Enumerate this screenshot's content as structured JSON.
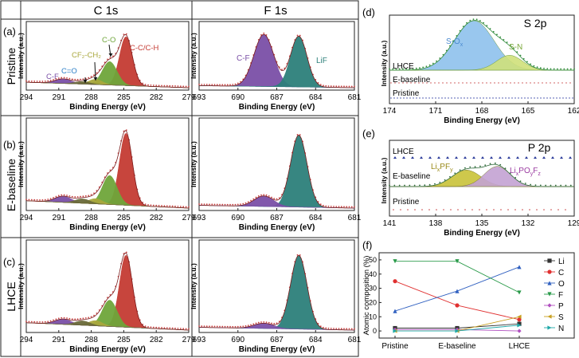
{
  "figure": {
    "columns": [
      "C 1s",
      "F 1s"
    ],
    "rows": [
      {
        "letter": "(a)",
        "name": "Pristine"
      },
      {
        "letter": "(b)",
        "name": "E-baseline"
      },
      {
        "letter": "(c)",
        "name": "LHCE"
      }
    ],
    "panel_d": {
      "letter": "(d)",
      "title": "S 2p"
    },
    "panel_e": {
      "letter": "(e)",
      "title": "P 2p"
    },
    "panel_f": {
      "letter": "(f)"
    }
  },
  "colors": {
    "cc": "#c43b33",
    "co": "#6fa53a",
    "cf2": "#a9a73c",
    "ceo": "#6a6a3a",
    "cf": "#7a4fa6",
    "lif": "#2c7f7a",
    "sox": "#8ec1ec",
    "sn": "#cfe07a",
    "lipf": "#c9c238",
    "lipo": "#c3a2d3",
    "fit": "#7a1b1b",
    "dots": "#c84040"
  },
  "chart_data": [
    {
      "id": "c1s",
      "type": "line",
      "element": "C 1s",
      "xlabel": "Binding Energy (eV)",
      "ylabel": "Intensity (a.u.)",
      "xlim": [
        294,
        279
      ],
      "xticks": [
        294,
        291,
        288,
        285,
        282,
        279
      ],
      "annotations": [
        "C-F",
        "C=O",
        "CF2-CH2",
        "C-O",
        "C-C/C-H"
      ],
      "peaks": [
        {
          "name": "C-C/C-H",
          "center": 284.8,
          "fwhm": 1.4,
          "heights": [
            0.75,
            0.82,
            0.82
          ]
        },
        {
          "name": "C-O",
          "center": 286.3,
          "fwhm": 1.6,
          "heights": [
            0.36,
            0.33,
            0.3
          ]
        },
        {
          "name": "CF2-CH2",
          "center": 287.6,
          "fwhm": 1.5,
          "heights": [
            0.08,
            0.06,
            0.06
          ]
        },
        {
          "name": "C=O",
          "center": 288.8,
          "fwhm": 1.6,
          "heights": [
            0.04,
            0.05,
            0.05
          ]
        },
        {
          "name": "C-F",
          "center": 290.6,
          "fwhm": 1.8,
          "heights": [
            0.07,
            0.07,
            0.06
          ]
        }
      ]
    },
    {
      "id": "f1s",
      "type": "line",
      "element": "F 1s",
      "xlabel": "Binding Energy (eV)",
      "ylabel": "Intensity (a.u.)",
      "xlim": [
        693,
        681
      ],
      "xticks": [
        693,
        690,
        687,
        684,
        681
      ],
      "annotations": [
        "C-F",
        "LiF"
      ],
      "peaks": [
        {
          "name": "C-F",
          "center": 688.0,
          "fwhm": 1.8,
          "heights": [
            0.8,
            0.12,
            0.06
          ]
        },
        {
          "name": "LiF",
          "center": 685.3,
          "fwhm": 1.5,
          "heights": [
            0.78,
            0.82,
            0.84
          ]
        }
      ]
    },
    {
      "id": "s2p",
      "type": "line",
      "element": "S 2p",
      "xlabel": "Binding Energy (eV)",
      "ylabel": "Intensity (a.u.)",
      "xlim": [
        174,
        162
      ],
      "xticks": [
        174,
        171,
        168,
        165,
        162
      ],
      "series": [
        {
          "name": "LHCE",
          "peaks": [
            {
              "name": "S-Ox",
              "center": 168.5,
              "fwhm": 3.0,
              "height": 1.0
            },
            {
              "name": "S-N",
              "center": 166.2,
              "fwhm": 2.0,
              "height": 0.3
            }
          ]
        },
        {
          "name": "E-baseline",
          "peaks": []
        },
        {
          "name": "Pristine",
          "peaks": []
        }
      ]
    },
    {
      "id": "p2p",
      "type": "line",
      "element": "P 2p",
      "xlabel": "Binding Energy (eV)",
      "ylabel": "Intensity (a.u.)",
      "xlim": [
        141,
        129
      ],
      "xticks": [
        141,
        138,
        135,
        132,
        129
      ],
      "series": [
        {
          "name": "LHCE",
          "peaks": []
        },
        {
          "name": "E-baseline",
          "peaks": [
            {
              "name": "LixPFy",
              "center": 136.0,
              "fwhm": 2.2,
              "height": 0.45
            },
            {
              "name": "LixPOyFz",
              "center": 134.0,
              "fwhm": 2.0,
              "height": 0.55
            }
          ]
        },
        {
          "name": "Pristine",
          "peaks": []
        }
      ]
    },
    {
      "id": "composition",
      "type": "line",
      "ylabel": "Atomic composition (%)",
      "categories": [
        "Pristine",
        "E-baseline",
        "LHCE"
      ],
      "ylim": [
        -5,
        55
      ],
      "yticks": [
        0,
        10,
        20,
        30,
        40,
        50
      ],
      "series": [
        {
          "name": "Li",
          "color": "#333333",
          "marker": "square",
          "values": [
            2,
            2,
            5
          ]
        },
        {
          "name": "C",
          "color": "#e03030",
          "marker": "circle",
          "values": [
            35,
            18,
            8
          ]
        },
        {
          "name": "O",
          "color": "#3060c0",
          "marker": "triangle",
          "values": [
            14,
            28,
            45
          ]
        },
        {
          "name": "F",
          "color": "#2a9a4a",
          "marker": "triangle-down",
          "values": [
            49,
            49,
            27
          ]
        },
        {
          "name": "P",
          "color": "#b050c0",
          "marker": "diamond",
          "values": [
            1,
            1,
            0
          ]
        },
        {
          "name": "S",
          "color": "#c8a020",
          "marker": "triangle-left",
          "values": [
            0,
            0,
            10
          ]
        },
        {
          "name": "N",
          "color": "#20a8a8",
          "marker": "triangle-right",
          "values": [
            0,
            0,
            4
          ]
        }
      ]
    }
  ]
}
